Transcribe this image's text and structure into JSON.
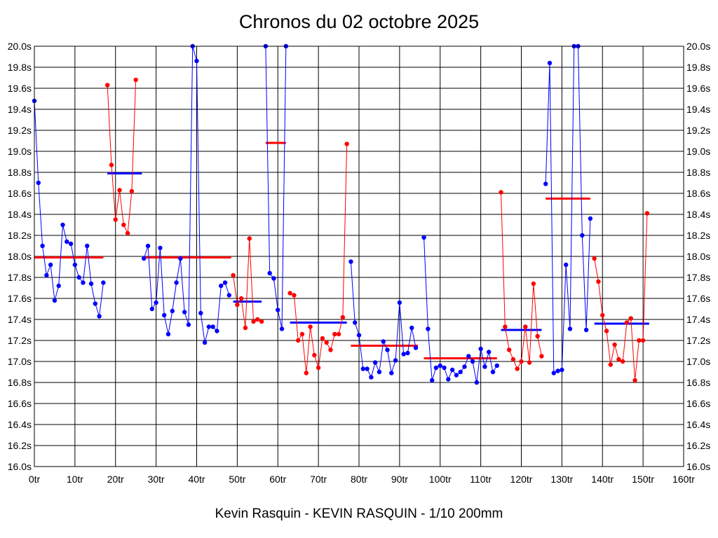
{
  "chart_title": "Chronos du 02 octobre 2025",
  "chart_subtitle": "Kevin Rasquin - KEVIN RASQUIN - 1/10 200mm",
  "colors": {
    "blue": "#0000ff",
    "red": "#ff0000",
    "grid": "#000000"
  },
  "chart_data": {
    "type": "line",
    "title": "Chronos du 02 octobre 2025",
    "subtitle": "Kevin Rasquin - KEVIN RASQUIN - 1/10 200mm",
    "xlim": [
      0,
      160
    ],
    "ylim": [
      16.0,
      20.0
    ],
    "x_ticks": [
      "0tr",
      "10tr",
      "20tr",
      "30tr",
      "40tr",
      "50tr",
      "60tr",
      "70tr",
      "80tr",
      "90tr",
      "100tr",
      "110tr",
      "120tr",
      "130tr",
      "140tr",
      "150tr",
      "160tr"
    ],
    "y_ticks": [
      "16.0s",
      "16.2s",
      "16.4s",
      "16.6s",
      "16.8s",
      "17.0s",
      "17.2s",
      "17.4s",
      "17.6s",
      "17.8s",
      "18.0s",
      "18.2s",
      "18.4s",
      "18.6s",
      "18.8s",
      "19.0s",
      "19.2s",
      "19.4s",
      "19.6s",
      "19.8s",
      "20.0s"
    ],
    "grid": true,
    "series": [
      {
        "color": "#0000ff",
        "x_start": 0,
        "values": [
          19.48,
          18.7,
          18.1,
          17.82,
          17.92,
          17.58,
          17.72,
          18.3,
          18.14,
          18.12,
          17.92,
          17.8,
          17.75,
          18.1,
          17.74,
          17.55,
          17.43,
          17.75
        ]
      },
      {
        "color": "#ff0000",
        "x_start": 18,
        "values": [
          19.63,
          18.87,
          18.35,
          18.63,
          18.3,
          18.22,
          18.62,
          19.68
        ]
      },
      {
        "color": "#0000ff",
        "x_start": 27,
        "values": [
          17.98,
          18.1,
          17.5,
          17.56,
          18.08,
          17.44,
          17.26,
          17.48,
          17.75,
          17.98,
          17.47,
          17.35,
          20.0,
          19.86,
          17.46,
          17.18,
          17.33,
          17.33,
          17.29,
          17.72,
          17.75,
          17.63
        ]
      },
      {
        "color": "#ff0000",
        "x_start": 49,
        "values": [
          17.82,
          17.54,
          17.6,
          17.32,
          18.17,
          17.38,
          17.4,
          17.38
        ]
      },
      {
        "color": "#0000ff",
        "x_start": 57,
        "values": [
          20.0,
          17.84,
          17.79,
          17.49,
          17.31,
          20.0
        ]
      },
      {
        "color": "#ff0000",
        "x_start": 63,
        "values": [
          17.65,
          17.63,
          17.2,
          17.26,
          16.89,
          17.33,
          17.06,
          16.94,
          17.22,
          17.18,
          17.11,
          17.26,
          17.26,
          17.42,
          19.07
        ]
      },
      {
        "color": "#0000ff",
        "x_start": 78,
        "values": [
          17.95,
          17.37,
          17.25,
          16.93,
          16.93,
          16.85,
          16.99,
          16.9,
          17.19,
          17.11,
          16.89,
          17.01,
          17.56,
          17.07,
          17.08,
          17.32,
          17.13
        ]
      },
      {
        "color": "#0000ff",
        "x_start": 96,
        "values": [
          18.18,
          17.31,
          16.82,
          16.94,
          16.96,
          16.94,
          16.83,
          16.92,
          16.87,
          16.9,
          16.95,
          17.05,
          17.0,
          16.8,
          17.12,
          16.95,
          17.09,
          16.9,
          16.96
        ]
      },
      {
        "color": "#ff0000",
        "x_start": 115,
        "values": [
          18.61,
          17.33,
          17.11,
          17.02,
          16.93,
          17.0,
          17.33,
          16.99,
          17.74,
          17.24,
          17.05
        ]
      },
      {
        "color": "#0000ff",
        "x_start": 126,
        "values": [
          18.69,
          19.84,
          16.89,
          16.91,
          16.92,
          17.92,
          17.31,
          20.0,
          20.0,
          18.2,
          17.3,
          18.36
        ]
      },
      {
        "color": "#ff0000",
        "x_start": 138,
        "values": [
          17.98,
          17.76,
          17.44,
          17.29,
          16.97,
          17.16,
          17.02,
          17.0,
          17.37,
          17.41,
          16.82,
          17.2,
          17.2,
          18.41
        ]
      }
    ],
    "averages": [
      {
        "color": "#ff0000",
        "x_from": 0,
        "x_to": 17,
        "value": 17.99
      },
      {
        "color": "#0000ff",
        "x_from": 18,
        "x_to": 26.5,
        "value": 18.79
      },
      {
        "color": "#ff0000",
        "x_from": 27,
        "x_to": 48.5,
        "value": 17.99
      },
      {
        "color": "#0000ff",
        "x_from": 49,
        "x_to": 56,
        "value": 17.57
      },
      {
        "color": "#ff0000",
        "x_from": 57,
        "x_to": 62,
        "value": 19.08
      },
      {
        "color": "#0000ff",
        "x_from": 63,
        "x_to": 77,
        "value": 17.37
      },
      {
        "color": "#ff0000",
        "x_from": 78,
        "x_to": 94.5,
        "value": 17.15
      },
      {
        "color": "#ff0000",
        "x_from": 96,
        "x_to": 114,
        "value": 17.03
      },
      {
        "color": "#0000ff",
        "x_from": 115,
        "x_to": 125,
        "value": 17.3
      },
      {
        "color": "#ff0000",
        "x_from": 126,
        "x_to": 137,
        "value": 18.55
      },
      {
        "color": "#0000ff",
        "x_from": 138,
        "x_to": 151.5,
        "value": 17.36
      }
    ]
  }
}
